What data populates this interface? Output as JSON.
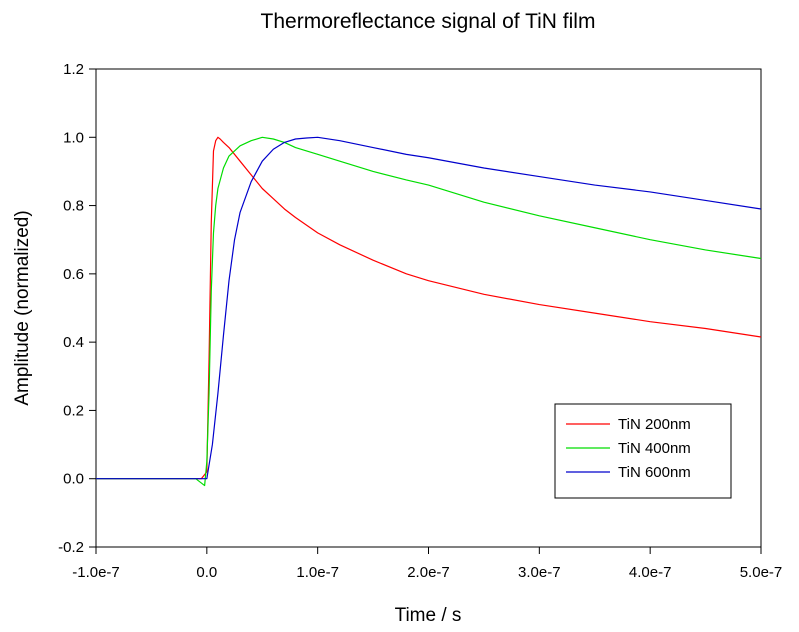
{
  "chart_data": {
    "type": "line",
    "title": "Thermoreflectance signal of TiN film",
    "xlabel": "Time / s",
    "ylabel": "Amplitude (normalized)",
    "xlim": [
      -1e-07,
      5e-07
    ],
    "ylim": [
      -0.2,
      1.2
    ],
    "x_ticks": [
      -1e-07,
      0,
      1e-07,
      2e-07,
      3e-07,
      4e-07,
      5e-07
    ],
    "x_tick_labels": [
      "-1.0e-7",
      "0.0",
      "1.0e-7",
      "2.0e-7",
      "3.0e-7",
      "4.0e-7",
      "5.0e-7"
    ],
    "y_ticks": [
      -0.2,
      0.0,
      0.2,
      0.4,
      0.6,
      0.8,
      1.0,
      1.2
    ],
    "y_tick_labels": [
      "-0.2",
      "0.0",
      "0.2",
      "0.4",
      "0.6",
      "0.8",
      "1.0",
      "1.2"
    ],
    "grid": false,
    "legend_position": "bottom-right",
    "series": [
      {
        "name": "TiN 200nm",
        "color": "#ff0000",
        "x": [
          -1e-07,
          -5e-08,
          -5e-09,
          0.0,
          2e-09,
          4e-09,
          6e-09,
          8e-09,
          1e-08,
          1.2e-08,
          1.5e-08,
          2e-08,
          3e-08,
          4e-08,
          5e-08,
          6e-08,
          7e-08,
          8e-08,
          1e-07,
          1.2e-07,
          1.5e-07,
          1.8e-07,
          2e-07,
          2.5e-07,
          3e-07,
          3.5e-07,
          4e-07,
          4.5e-07,
          5e-07
        ],
        "y": [
          0.0,
          0.0,
          0.0,
          0.02,
          0.35,
          0.75,
          0.96,
          0.99,
          1.0,
          0.995,
          0.985,
          0.97,
          0.93,
          0.89,
          0.85,
          0.82,
          0.79,
          0.765,
          0.72,
          0.685,
          0.64,
          0.6,
          0.58,
          0.54,
          0.51,
          0.485,
          0.46,
          0.44,
          0.415
        ]
      },
      {
        "name": "TiN 400nm",
        "color": "#00dd00",
        "x": [
          -1e-07,
          -5e-08,
          -1e-08,
          -2e-09,
          0.0,
          2e-09,
          4e-09,
          6e-09,
          8e-09,
          1e-08,
          1.5e-08,
          2e-08,
          3e-08,
          4e-08,
          5e-08,
          6e-08,
          7e-08,
          8e-08,
          1e-07,
          1.2e-07,
          1.5e-07,
          1.8e-07,
          2e-07,
          2.5e-07,
          3e-07,
          3.5e-07,
          4e-07,
          4.5e-07,
          5e-07
        ],
        "y": [
          0.0,
          0.0,
          0.0,
          -0.02,
          0.05,
          0.25,
          0.55,
          0.72,
          0.8,
          0.85,
          0.91,
          0.945,
          0.975,
          0.99,
          1.0,
          0.995,
          0.985,
          0.97,
          0.95,
          0.93,
          0.9,
          0.875,
          0.86,
          0.81,
          0.77,
          0.735,
          0.7,
          0.67,
          0.645
        ]
      },
      {
        "name": "TiN 600nm",
        "color": "#0000cc",
        "x": [
          -1e-07,
          -5e-08,
          -2e-09,
          0.0,
          5e-09,
          1e-08,
          1.5e-08,
          2e-08,
          2.5e-08,
          3e-08,
          4e-08,
          5e-08,
          6e-08,
          7e-08,
          8e-08,
          9e-08,
          1e-07,
          1.2e-07,
          1.5e-07,
          1.8e-07,
          2e-07,
          2.5e-07,
          3e-07,
          3.5e-07,
          4e-07,
          4.5e-07,
          5e-07
        ],
        "y": [
          0.0,
          0.0,
          0.0,
          0.0,
          0.1,
          0.25,
          0.42,
          0.58,
          0.7,
          0.78,
          0.87,
          0.93,
          0.965,
          0.985,
          0.995,
          0.998,
          1.0,
          0.99,
          0.97,
          0.95,
          0.94,
          0.91,
          0.885,
          0.86,
          0.84,
          0.815,
          0.79
        ]
      }
    ]
  }
}
